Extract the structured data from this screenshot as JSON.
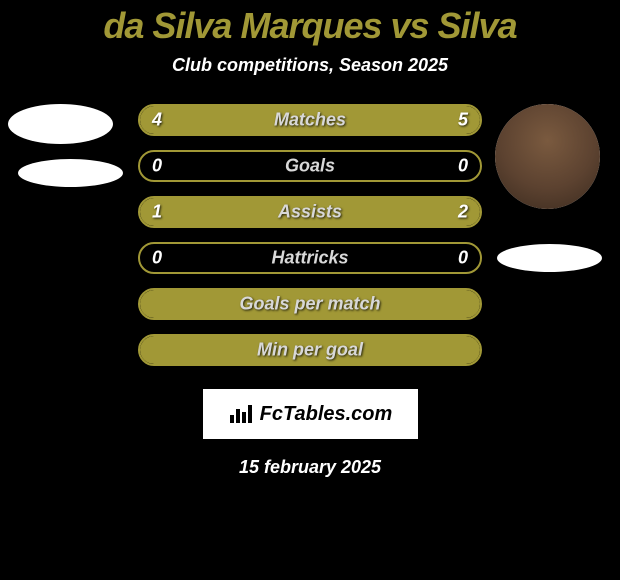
{
  "header": {
    "title": "da Silva Marques vs Silva",
    "subtitle": "Club competitions, Season 2025"
  },
  "colors": {
    "accent": "#a19836",
    "background": "#000000",
    "text": "#ffffff",
    "label_text": "#d8d8d8"
  },
  "stats": [
    {
      "label": "Matches",
      "left_value": "4",
      "right_value": "5",
      "left_pct": 44,
      "right_pct": 56,
      "show_values": true
    },
    {
      "label": "Goals",
      "left_value": "0",
      "right_value": "0",
      "left_pct": 0,
      "right_pct": 0,
      "show_values": true
    },
    {
      "label": "Assists",
      "left_value": "1",
      "right_value": "2",
      "left_pct": 33,
      "right_pct": 67,
      "show_values": true
    },
    {
      "label": "Hattricks",
      "left_value": "0",
      "right_value": "0",
      "left_pct": 0,
      "right_pct": 0,
      "show_values": true
    },
    {
      "label": "Goals per match",
      "left_value": "",
      "right_value": "",
      "left_pct": 100,
      "right_pct": 0,
      "show_values": false,
      "full": true
    },
    {
      "label": "Min per goal",
      "left_value": "",
      "right_value": "",
      "left_pct": 100,
      "right_pct": 0,
      "show_values": false,
      "full": true
    }
  ],
  "footer": {
    "brand": "FcTables.com",
    "date": "15 february 2025"
  },
  "players": {
    "left_name": "da Silva Marques",
    "right_name": "Silva"
  }
}
